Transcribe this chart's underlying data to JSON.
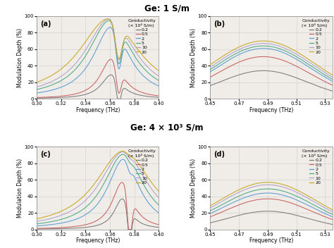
{
  "title1": "Ge: 1 S/m",
  "title2": "Ge: 4 × 10³ S/m",
  "conductivity_labels": [
    "0.2",
    "0.5",
    "2",
    "5",
    "10",
    "20"
  ],
  "legend_title_line1": "Conductivity",
  "legend_title_line2": "(× 10⁴ S/m)",
  "colors": [
    "#7a7a7a",
    "#c96060",
    "#5b9bd5",
    "#4aaa88",
    "#b0a0cc",
    "#c8a820"
  ],
  "subplot_labels": [
    "(a)",
    "(b)",
    "(c)",
    "(d)"
  ],
  "xlabel_a": "Frequency (THz)",
  "xlabel_b": "Frequecny (THz)",
  "xlabel_c": "Frequency (THz)",
  "xlabel_d": "Frequency (THz)",
  "ylabel": "Modulation Depth (%)",
  "ylim": [
    0,
    100
  ],
  "xlim_left": [
    0.3,
    0.4
  ],
  "xlim_right": [
    0.45,
    0.535
  ],
  "xticks_left": [
    0.3,
    0.32,
    0.34,
    0.36,
    0.38,
    0.4
  ],
  "xticks_right": [
    0.45,
    0.47,
    0.49,
    0.51,
    0.53
  ],
  "yticks": [
    0,
    20,
    40,
    60,
    80,
    100
  ],
  "bg_color": "#f0ede8"
}
